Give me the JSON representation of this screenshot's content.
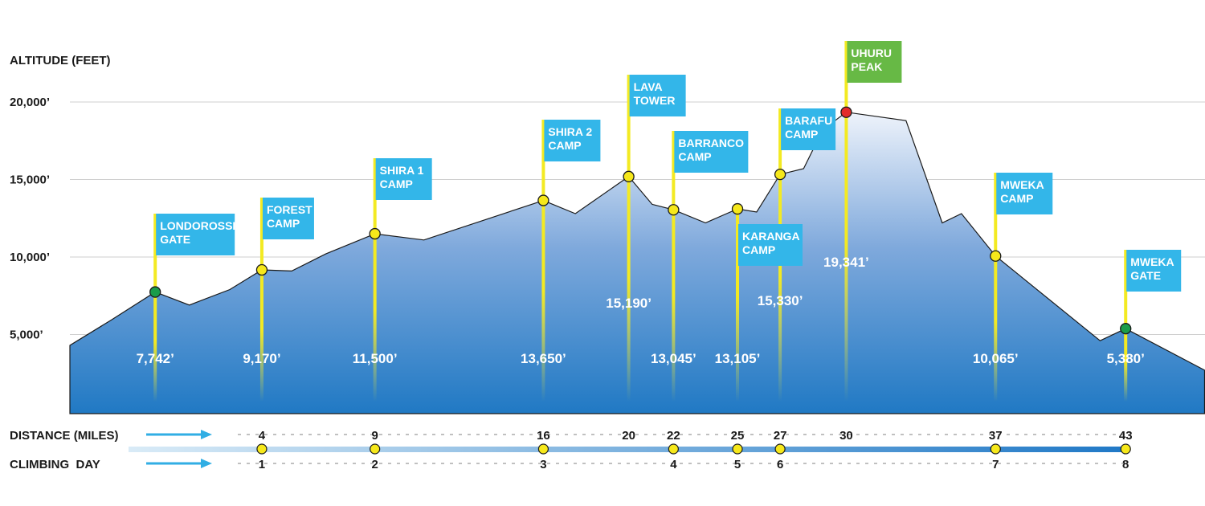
{
  "chart_data": {
    "type": "area",
    "ylabel": "ALTITUDE (FEET)",
    "yticks": [
      5000,
      10000,
      15000,
      20000
    ],
    "ytick_labels": [
      "5,000’",
      "10,000’",
      "15,000’",
      "20,000’"
    ],
    "ylim": [
      0,
      22000
    ],
    "grid": true,
    "profile": [
      {
        "x": 0,
        "y": 4300
      },
      {
        "x": 1.9,
        "y": 5900
      },
      {
        "x": 4,
        "y": 7742
      },
      {
        "x": 5.6,
        "y": 6900
      },
      {
        "x": 7.5,
        "y": 7900
      },
      {
        "x": 9,
        "y": 9170
      },
      {
        "x": 10.4,
        "y": 9100
      },
      {
        "x": 12,
        "y": 10200
      },
      {
        "x": 14.3,
        "y": 11500
      },
      {
        "x": 16.6,
        "y": 11100
      },
      {
        "x": 22.2,
        "y": 13650
      },
      {
        "x": 23.7,
        "y": 12800
      },
      {
        "x": 26.2,
        "y": 15190
      },
      {
        "x": 27.3,
        "y": 13400
      },
      {
        "x": 28.3,
        "y": 13045
      },
      {
        "x": 29.8,
        "y": 12200
      },
      {
        "x": 31.3,
        "y": 13105
      },
      {
        "x": 32.2,
        "y": 12900
      },
      {
        "x": 33.3,
        "y": 15330
      },
      {
        "x": 34.4,
        "y": 15700
      },
      {
        "x": 35.3,
        "y": 18200
      },
      {
        "x": 36.4,
        "y": 19341
      },
      {
        "x": 39.2,
        "y": 18800
      },
      {
        "x": 40.9,
        "y": 12200
      },
      {
        "x": 41.8,
        "y": 12800
      },
      {
        "x": 43.4,
        "y": 10065
      },
      {
        "x": 48.3,
        "y": 4600
      },
      {
        "x": 49.5,
        "y": 5380
      },
      {
        "x": 53.2,
        "y": 2700
      }
    ],
    "camps": [
      {
        "name": [
          "LONDOROSSI",
          "GATE"
        ],
        "x": 4,
        "altitude": 7742,
        "altitude_label": "7,742’",
        "marker": "green"
      },
      {
        "name": [
          "FOREST",
          "CAMP"
        ],
        "x": 9,
        "altitude": 9170,
        "altitude_label": "9,170’",
        "marker": "yellow"
      },
      {
        "name": [
          "SHIRA 1",
          "CAMP"
        ],
        "x": 14.3,
        "altitude": 11500,
        "altitude_label": "11,500’",
        "marker": "yellow"
      },
      {
        "name": [
          "SHIRA 2",
          "CAMP"
        ],
        "x": 22.2,
        "altitude": 13650,
        "altitude_label": "13,650’",
        "marker": "yellow"
      },
      {
        "name": [
          "LAVA",
          "TOWER"
        ],
        "x": 26.2,
        "altitude": 15190,
        "altitude_label": "15,190’",
        "marker": "yellow"
      },
      {
        "name": [
          "BARRANCO",
          "CAMP"
        ],
        "x": 28.3,
        "altitude": 13045,
        "altitude_label": "13,045’",
        "marker": "yellow"
      },
      {
        "name": [
          "KARANGA",
          "CAMP"
        ],
        "x": 31.3,
        "altitude": 13105,
        "altitude_label": "13,105’",
        "marker": "yellow"
      },
      {
        "name": [
          "BARAFU",
          "CAMP"
        ],
        "x": 33.3,
        "altitude": 15330,
        "altitude_label": "15,330’",
        "marker": "yellow"
      },
      {
        "name": [
          "UHURU",
          "PEAK"
        ],
        "x": 36.4,
        "altitude": 19341,
        "altitude_label": "19,341’",
        "marker": "red"
      },
      {
        "name": [
          "MWEKA",
          "CAMP"
        ],
        "x": 43.4,
        "altitude": 10065,
        "altitude_label": "10,065’",
        "marker": "yellow"
      },
      {
        "name": [
          "MWEKA",
          "GATE"
        ],
        "x": 49.5,
        "altitude": 5380,
        "altitude_label": "5,380’",
        "marker": "green"
      }
    ],
    "distance_label": "DISTANCE (MILES)",
    "distance_ticks": [
      {
        "x": 9,
        "label": "4"
      },
      {
        "x": 14.3,
        "label": "9"
      },
      {
        "x": 22.2,
        "label": "16"
      },
      {
        "x": 26.2,
        "label": "20"
      },
      {
        "x": 28.3,
        "label": "22"
      },
      {
        "x": 31.3,
        "label": "25"
      },
      {
        "x": 33.3,
        "label": "27"
      },
      {
        "x": 36.4,
        "label": "30"
      },
      {
        "x": 43.4,
        "label": "37"
      },
      {
        "x": 49.5,
        "label": "43"
      }
    ],
    "day_label": "CLIMBING  DAY",
    "day_ticks": [
      {
        "x": 9,
        "label": "1"
      },
      {
        "x": 14.3,
        "label": "2"
      },
      {
        "x": 22.2,
        "label": "3"
      },
      {
        "x": 28.3,
        "label": "4"
      },
      {
        "x": 31.3,
        "label": "5"
      },
      {
        "x": 33.3,
        "label": "6"
      },
      {
        "x": 43.4,
        "label": "7"
      },
      {
        "x": 49.5,
        "label": "8"
      }
    ],
    "timeline_markers": [
      9,
      14.3,
      22.2,
      28.3,
      31.3,
      33.3,
      43.4,
      49.5
    ],
    "colors": {
      "area_top": "#eef3fb",
      "area_bottom": "#2079c4",
      "sign": "#33b6e9",
      "summit_sign": "#67b945",
      "pole": "#f3ea22",
      "marker_yellow": "#f6e81b",
      "marker_green": "#1a9c4a",
      "marker_red": "#e32b2b",
      "arrow": "#31aee4",
      "text": "#1a1a1a"
    }
  }
}
